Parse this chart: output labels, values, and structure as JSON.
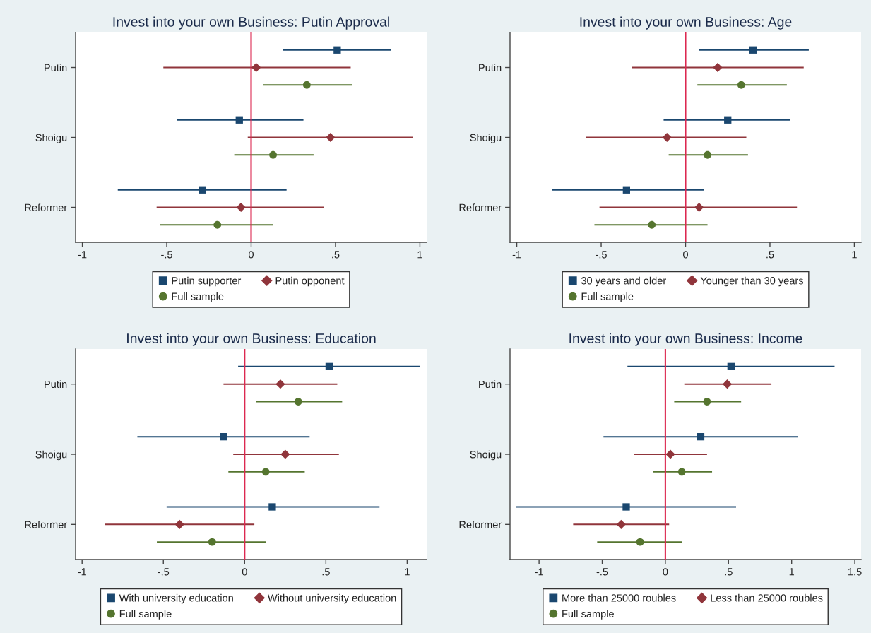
{
  "chart_data": [
    {
      "type": "scatter",
      "orientation": "horizontal",
      "title": "Invest into your own Business: Putin Approval",
      "categories": [
        "Putin",
        "Shoigu",
        "Reformer"
      ],
      "series": [
        {
          "name": "Putin supporter",
          "color": "#1a476f",
          "marker": "square",
          "values": [
            0.51,
            -0.07,
            -0.29
          ],
          "errors": [
            [
              0.19,
              0.83
            ],
            [
              -0.44,
              0.31
            ],
            [
              -0.79,
              0.21
            ]
          ]
        },
        {
          "name": "Putin opponent",
          "color": "#90353b",
          "marker": "diamond",
          "values": [
            0.03,
            0.47,
            -0.06
          ],
          "errors": [
            [
              -0.52,
              0.59
            ],
            [
              -0.02,
              0.96
            ],
            [
              -0.56,
              0.43
            ]
          ]
        },
        {
          "name": "Full sample",
          "color": "#55752f",
          "marker": "circle",
          "values": [
            0.33,
            0.13,
            -0.2
          ],
          "errors": [
            [
              0.07,
              0.6
            ],
            [
              -0.1,
              0.37
            ],
            [
              -0.54,
              0.13
            ]
          ]
        }
      ],
      "xlim": [
        -1.04,
        1.04
      ],
      "xticks": [
        {
          "value": -1,
          "label": "-1"
        },
        {
          "value": -0.5,
          "label": "-.5"
        },
        0,
        {
          "value": 0.5,
          "label": ".5"
        },
        1
      ],
      "ref_lines": [
        {
          "axis": "x",
          "value": 0,
          "color": "#dc2850"
        }
      ],
      "legend": "bottom"
    },
    {
      "type": "scatter",
      "orientation": "horizontal",
      "title": "Invest into your own Business: Age",
      "categories": [
        "Putin",
        "Shoigu",
        "Reformer"
      ],
      "series": [
        {
          "name": "30 years and older",
          "color": "#1a476f",
          "marker": "square",
          "values": [
            0.4,
            0.25,
            -0.35
          ],
          "errors": [
            [
              0.08,
              0.73
            ],
            [
              -0.13,
              0.62
            ],
            [
              -0.79,
              0.11
            ]
          ]
        },
        {
          "name": "Younger than 30 years",
          "color": "#90353b",
          "marker": "diamond",
          "values": [
            0.19,
            -0.11,
            0.08
          ],
          "errors": [
            [
              -0.32,
              0.7
            ],
            [
              -0.59,
              0.36
            ],
            [
              -0.51,
              0.66
            ]
          ]
        },
        {
          "name": "Full sample",
          "color": "#55752f",
          "marker": "circle",
          "values": [
            0.33,
            0.13,
            -0.2
          ],
          "errors": [
            [
              0.07,
              0.6
            ],
            [
              -0.1,
              0.37
            ],
            [
              -0.54,
              0.13
            ]
          ]
        }
      ],
      "xlim": [
        -1.04,
        1.04
      ],
      "xticks": [
        {
          "value": -1,
          "label": "-1"
        },
        {
          "value": -0.5,
          "label": "-.5"
        },
        0,
        {
          "value": 0.5,
          "label": ".5"
        },
        1
      ],
      "ref_lines": [
        {
          "axis": "x",
          "value": 0,
          "color": "#dc2850"
        }
      ],
      "legend": "bottom"
    },
    {
      "type": "scatter",
      "orientation": "horizontal",
      "title": "Invest into your own Business: Education",
      "categories": [
        "Putin",
        "Shoigu",
        "Reformer"
      ],
      "series": [
        {
          "name": "With university education",
          "color": "#1a476f",
          "marker": "square",
          "values": [
            0.52,
            -0.13,
            0.17
          ],
          "errors": [
            [
              -0.04,
              1.08
            ],
            [
              -0.66,
              0.4
            ],
            [
              -0.48,
              0.83
            ]
          ]
        },
        {
          "name": "Without university education",
          "color": "#90353b",
          "marker": "diamond",
          "values": [
            0.22,
            0.25,
            -0.4
          ],
          "errors": [
            [
              -0.13,
              0.57
            ],
            [
              -0.07,
              0.58
            ],
            [
              -0.86,
              0.06
            ]
          ]
        },
        {
          "name": "Full sample",
          "color": "#55752f",
          "marker": "circle",
          "values": [
            0.33,
            0.13,
            -0.2
          ],
          "errors": [
            [
              0.07,
              0.6
            ],
            [
              -0.1,
              0.37
            ],
            [
              -0.54,
              0.13
            ]
          ]
        }
      ],
      "xlim": [
        -1.04,
        1.12
      ],
      "xticks": [
        {
          "value": -1,
          "label": "-1"
        },
        {
          "value": -0.5,
          "label": "-.5"
        },
        0,
        {
          "value": 0.5,
          "label": ".5"
        },
        1
      ],
      "ref_lines": [
        {
          "axis": "x",
          "value": 0,
          "color": "#dc2850"
        }
      ],
      "legend": "bottom"
    },
    {
      "type": "scatter",
      "orientation": "horizontal",
      "title": "Invest into your own Business: Income",
      "categories": [
        "Putin",
        "Shoigu",
        "Reformer"
      ],
      "series": [
        {
          "name": "More than 25000 roubles",
          "color": "#1a476f",
          "marker": "square",
          "values": [
            0.52,
            0.28,
            -0.31
          ],
          "errors": [
            [
              -0.3,
              1.34
            ],
            [
              -0.49,
              1.05
            ],
            [
              -1.18,
              0.56
            ]
          ]
        },
        {
          "name": "Less than 25000 roubles",
          "color": "#90353b",
          "marker": "diamond",
          "values": [
            0.49,
            0.04,
            -0.35
          ],
          "errors": [
            [
              0.15,
              0.84
            ],
            [
              -0.25,
              0.33
            ],
            [
              -0.73,
              0.03
            ]
          ]
        },
        {
          "name": "Full sample",
          "color": "#55752f",
          "marker": "circle",
          "values": [
            0.33,
            0.13,
            -0.2
          ],
          "errors": [
            [
              0.07,
              0.6
            ],
            [
              -0.1,
              0.37
            ],
            [
              -0.54,
              0.13
            ]
          ]
        }
      ],
      "xlim": [
        -1.23,
        1.55
      ],
      "xticks": [
        {
          "value": -1,
          "label": "-1"
        },
        {
          "value": -0.5,
          "label": "-.5"
        },
        0,
        {
          "value": 0.5,
          "label": ".5"
        },
        1,
        {
          "value": 1.5,
          "label": "1.5"
        }
      ],
      "ref_lines": [
        {
          "axis": "x",
          "value": 0,
          "color": "#dc2850"
        }
      ],
      "legend": "bottom"
    }
  ]
}
